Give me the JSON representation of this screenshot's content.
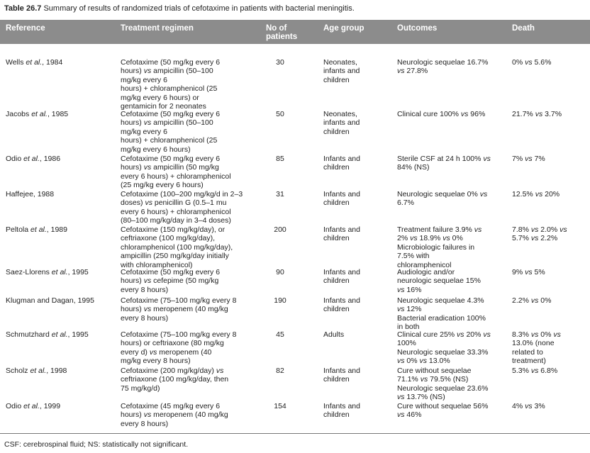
{
  "title": {
    "label": "Table 26.7",
    "text": "Summary of results of randomized trials of cefotaxime in patients with bacterial meningitis."
  },
  "table": {
    "header": [
      "Reference",
      "Treatment regimen",
      [
        "No of",
        "patients"
      ],
      "Age group",
      "Outcomes",
      "Death"
    ],
    "rows": [
      [
        [
          "Wells et al., 1984"
        ],
        [
          "Cefotaxime (50 mg/kg every 6",
          "hours) vs ampicillin (50–100",
          "mg/kg every 6",
          "hours) + chloramphenicol (25",
          "mg/kg every 6 hours) or",
          "gentamicin for 2 neonates"
        ],
        30,
        [
          "Neonates,",
          "infants and",
          "children"
        ],
        [
          "Neurologic sequelae 16.7%",
          "vs 27.8%"
        ],
        [
          "0% vs 5.6%"
        ]
      ],
      [
        [
          "Jacobs et al., 1985"
        ],
        [
          "Cefotaxime (50 mg/kg every 6",
          "hours) vs ampicillin (50–100",
          "mg/kg every 6",
          "hours) + chloramphenicol (25",
          "mg/kg every 6 hours)"
        ],
        50,
        [
          "Neonates,",
          "infants and",
          "children"
        ],
        [
          "Clinical cure 100% vs 96%"
        ],
        [
          "21.7% vs 3.7%"
        ]
      ],
      [
        [
          "Odio et al., 1986"
        ],
        [
          "Cefotaxime (50 mg/kg every 6",
          "hours) vs ampicillin (50 mg/kg",
          "every 6 hours) + chloramphenicol",
          "(25 mg/kg every 6 hours)"
        ],
        85,
        [
          "Infants and",
          "children"
        ],
        [
          "Sterile CSF at 24 h 100% vs",
          "84% (NS)"
        ],
        [
          "7% vs 7%"
        ]
      ],
      [
        [
          "Haffejee, 1988"
        ],
        [
          "Cefotaxime (100–200 mg/kg/d in 2–3",
          "doses) vs penicillin G (0.5–1 mu",
          "every 6 hours) + chloramphenicol",
          "(80–100 mg/kg/day in 3–4 doses)"
        ],
        31,
        [
          "Infants and",
          "children"
        ],
        [
          "Neurologic sequelae 0% vs",
          "6.7%"
        ],
        [
          "12.5% vs 20%"
        ]
      ],
      [
        [
          "Peltola et al., 1989"
        ],
        [
          "Cefotaxime (150 mg/kg/day), or",
          "ceftriaxone (100 mg/kg/day),",
          "chloramphenicol (100 mg/kg/day),",
          "ampicillin (250 mg/kg/day initially",
          "with chloramphenicol)"
        ],
        200,
        [
          "Infants and",
          "children"
        ],
        [
          "Treatment failure 3.9% vs",
          "2% vs 18.9% vs 0%",
          "Microbiologic failures in",
          "7.5% with",
          "chloramphenicol"
        ],
        [
          "7.8% vs 2.0% vs",
          "5.7% vs 2.2%"
        ]
      ],
      [
        [
          "Saez-Llorens et al., 1995"
        ],
        [
          "Cefotaxime (50 mg/kg every 6",
          "hours) vs cefepime (50 mg/kg",
          "every 8 hours)"
        ],
        90,
        [
          "Infants and",
          "children"
        ],
        [
          "Audiologic and/or",
          "neurologic sequelae 15%",
          "vs 16%"
        ],
        [
          "9% vs 5%"
        ]
      ],
      [
        [
          "Klugman and Dagan, 1995"
        ],
        [
          "Cefotaxime (75–100 mg/kg every 8",
          "hours) vs meropenem (40 mg/kg",
          "every 8 hours)"
        ],
        190,
        [
          "Infants and",
          "children"
        ],
        [
          "Neurologic sequelae 4.3%",
          "vs 12%",
          "Bacterial eradication 100%",
          "in both"
        ],
        [
          "2.2% vs 0%"
        ]
      ],
      [
        [
          "Schmutzhard et al., 1995"
        ],
        [
          "Cefotaxime (75–100 mg/kg every 8",
          "hours) or ceftriaxone (80 mg/kg",
          "every d) vs meropenem (40",
          "mg/kg every 8 hours)"
        ],
        45,
        [
          "Adults"
        ],
        [
          "Clinical cure 25% vs 20% vs",
          "100%",
          "Neurologic sequelae 33.3%",
          "vs 0% vs 13.0%"
        ],
        [
          "8.3% vs 0% vs",
          "13.0% (none",
          "related to",
          "treatment)"
        ]
      ],
      [
        [
          "Scholz et al., 1998"
        ],
        [
          "Cefotaxime (200 mg/kg/day) vs",
          "ceftriaxone (100 mg/kg/day, then",
          "75 mg/kg/d)"
        ],
        82,
        [
          "Infants and",
          "children"
        ],
        [
          "Cure without sequelae",
          "71.1% vs 79.5% (NS)",
          "Neurologic sequelae 23.6%",
          "vs 13.7% (NS)"
        ],
        [
          "5.3% vs 6.8%"
        ]
      ],
      [
        [
          "Odio et al., 1999"
        ],
        [
          "Cefotaxime (45 mg/kg every 6",
          "hours) vs meropenem (40 mg/kg",
          "every 8 hours)"
        ],
        154,
        [
          "Infants and",
          "children"
        ],
        [
          "Cure without sequelae 56%",
          "vs 46%"
        ],
        [
          "4% vs 3%"
        ]
      ]
    ]
  },
  "footnote": "CSF: cerebrospinal fluid; NS: statistically not significant."
}
